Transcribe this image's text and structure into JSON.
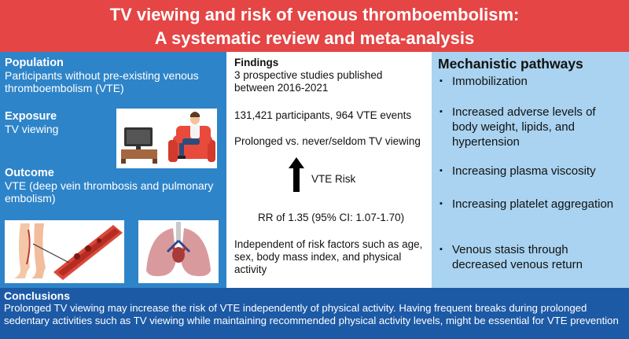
{
  "header": {
    "title_line1": "TV viewing and risk of venous thromboembolism:",
    "title_line2": "A systematic review and meta-analysis"
  },
  "left": {
    "population": {
      "heading": "Population",
      "text": "Participants without pre-existing venous thromboembolism (VTE)"
    },
    "exposure": {
      "heading": "Exposure",
      "text": "TV viewing"
    },
    "outcome": {
      "heading": "Outcome",
      "text": "VTE (deep vein thrombosis and pulmonary embolism)"
    }
  },
  "findings": {
    "heading": "Findings",
    "studies": "3 prospective studies published between 2016-2021",
    "participants": "131,421 participants, 964 VTE events",
    "comparison": "Prolonged vs. never/seldom TV viewing",
    "risk_label": "VTE Risk",
    "rr": "RR of 1.35 (95% CI: 1.07-1.70)",
    "independent": "Independent of risk factors such as age, sex, body mass index, and physical activity"
  },
  "mechanisms": {
    "heading": "Mechanistic pathways",
    "bullet": "▪",
    "items": [
      "Immobilization",
      "Increased adverse levels of body weight, lipids, and hypertension",
      "Increasing plasma viscosity",
      "Increasing platelet aggregation",
      "Venous stasis through decreased venous return"
    ]
  },
  "conclusions": {
    "heading": "Conclusions",
    "text": "Prolonged TV viewing may increase the risk of VTE independently of physical activity. Having frequent breaks during prolonged sedentary activities such as TV viewing while maintaining recommended physical activity levels, might be essential for VTE prevention"
  },
  "colors": {
    "header": "#e54545",
    "left": "#2e84c9",
    "right": "#a9d3f0",
    "footer": "#1d5aa6"
  }
}
